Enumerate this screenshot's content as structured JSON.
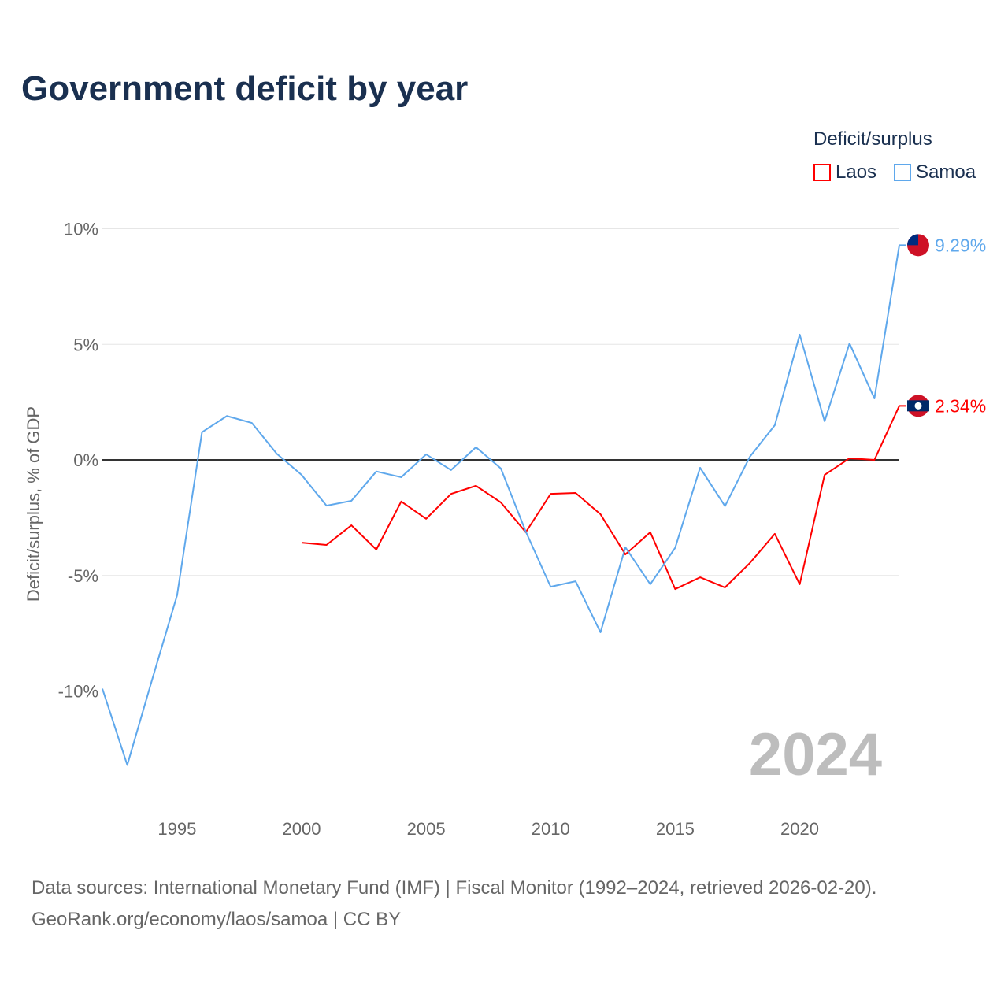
{
  "chart_data": {
    "type": "line",
    "title": "Government deficit by year",
    "ylabel": "Deficit/surplus, % of GDP",
    "xlabel": "",
    "legend_title": "Deficit/surplus",
    "legend_placement": "top-right",
    "ylim": [
      -14,
      12
    ],
    "xlim": [
      1992,
      2024
    ],
    "yticks": [
      {
        "v": 10,
        "label": "10%"
      },
      {
        "v": 5,
        "label": "5%"
      },
      {
        "v": 0,
        "label": "0%"
      },
      {
        "v": -5,
        "label": "-5%"
      },
      {
        "v": -10,
        "label": "-10%"
      }
    ],
    "xticks": [
      {
        "v": 1995,
        "label": "1995"
      },
      {
        "v": 2000,
        "label": "2000"
      },
      {
        "v": 2005,
        "label": "2005"
      },
      {
        "v": 2010,
        "label": "2010"
      },
      {
        "v": 2015,
        "label": "2015"
      },
      {
        "v": 2020,
        "label": "2020"
      }
    ],
    "year_watermark": "2024",
    "series": [
      {
        "name": "Laos",
        "color": "#ff0000",
        "end_label": "2.34%",
        "flag": "laos-flag",
        "x": [
          2000,
          2001,
          2002,
          2003,
          2004,
          2005,
          2006,
          2007,
          2008,
          2009,
          2010,
          2011,
          2012,
          2013,
          2014,
          2015,
          2016,
          2017,
          2018,
          2019,
          2020,
          2021,
          2022,
          2023,
          2024
        ],
        "y": [
          -3.58,
          -3.68,
          -2.83,
          -3.88,
          -1.8,
          -2.55,
          -1.47,
          -1.12,
          -1.84,
          -3.13,
          -1.47,
          -1.43,
          -2.35,
          -4.09,
          -3.13,
          -5.59,
          -5.08,
          -5.52,
          -4.46,
          -3.2,
          -5.38,
          -0.65,
          0.07,
          0.0,
          2.34
        ]
      },
      {
        "name": "Samoa",
        "color": "#5fa8ec",
        "end_label": "9.29%",
        "flag": "samoa-flag",
        "x": [
          1992,
          1993,
          1994,
          1995,
          1996,
          1997,
          1998,
          1999,
          2000,
          2001,
          2002,
          2003,
          2004,
          2005,
          2006,
          2007,
          2008,
          2009,
          2010,
          2011,
          2012,
          2013,
          2014,
          2015,
          2016,
          2017,
          2018,
          2019,
          2020,
          2021,
          2022,
          2023,
          2024
        ],
        "y": [
          -9.9,
          -13.2,
          -9.5,
          -5.86,
          1.2,
          1.9,
          1.6,
          0.27,
          -0.65,
          -1.98,
          -1.77,
          -0.5,
          -0.75,
          0.24,
          -0.44,
          0.55,
          -0.37,
          -3.1,
          -5.49,
          -5.25,
          -7.46,
          -3.78,
          -5.38,
          -3.8,
          -0.34,
          -2.0,
          0.14,
          1.5,
          5.42,
          1.67,
          5.04,
          2.66,
          9.29
        ]
      }
    ]
  },
  "source_line1": "Data sources: International Monetary Fund (IMF) | Fiscal Monitor (1992–2024, retrieved 2026-02-20).",
  "source_line2": "GeoRank.org/economy/laos/samoa | CC BY"
}
